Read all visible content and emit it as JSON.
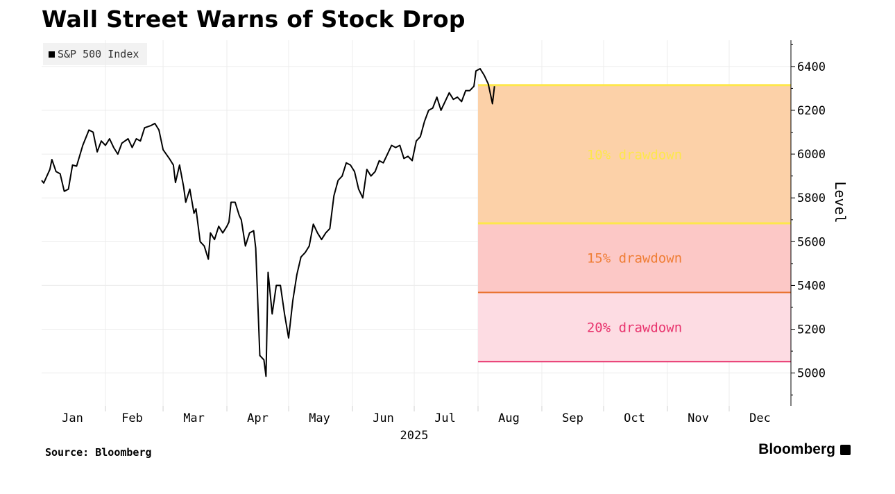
{
  "title": "Wall Street Warns of Stock Drop",
  "legend": {
    "label": "S&P 500 Index",
    "icon": "square-icon"
  },
  "source": "Source: Bloomberg",
  "brand": "Bloomberg",
  "chart_data": {
    "type": "line",
    "title": "Wall Street Warns of Stock Drop",
    "ylabel": "Level",
    "x_axis_year": "2025",
    "ylim": [
      4850,
      6520
    ],
    "yticks": [
      5000,
      5200,
      5400,
      5600,
      5800,
      6000,
      6200,
      6400
    ],
    "x_range": [
      "2025-01-01",
      "2025-12-31"
    ],
    "xticks": [
      {
        "label": "Jan",
        "date": "2025-01-16"
      },
      {
        "label": "Feb",
        "date": "2025-02-14"
      },
      {
        "label": "Mar",
        "date": "2025-03-16"
      },
      {
        "label": "Apr",
        "date": "2025-04-16"
      },
      {
        "label": "May",
        "date": "2025-05-16"
      },
      {
        "label": "Jun",
        "date": "2025-06-16"
      },
      {
        "label": "Jul",
        "date": "2025-07-16"
      },
      {
        "label": "Aug",
        "date": "2025-08-16"
      },
      {
        "label": "Sep",
        "date": "2025-09-16"
      },
      {
        "label": "Oct",
        "date": "2025-10-16"
      },
      {
        "label": "Nov",
        "date": "2025-11-16"
      },
      {
        "label": "Dec",
        "date": "2025-12-16"
      }
    ],
    "grid": true,
    "legend_position": "top-left",
    "colors": {
      "line": "#000000",
      "band_10": "#fcd1a8",
      "band_15": "#fcc8c6",
      "band_20": "#fddce3",
      "line_10": "#fde74c",
      "line_15": "#e8712c",
      "line_20": "#e8336d",
      "label_10": "#fde74c",
      "label_15": "#ef7d34",
      "label_20": "#e8336d"
    },
    "bands": {
      "start": "2025-08-01",
      "end": "2025-12-31",
      "peak": 6315,
      "levels": [
        {
          "name": "10% drawdown",
          "level": 5684,
          "label": "10% drawdown"
        },
        {
          "name": "15% drawdown",
          "level": 5368,
          "label": "15% drawdown"
        },
        {
          "name": "20% drawdown",
          "level": 5052,
          "label": "20% drawdown"
        }
      ]
    },
    "series": [
      {
        "name": "S&P 500 Index",
        "points": [
          [
            "2025-01-01",
            5880
          ],
          [
            "2025-01-02",
            5868
          ],
          [
            "2025-01-05",
            5930
          ],
          [
            "2025-01-06",
            5975
          ],
          [
            "2025-01-08",
            5920
          ],
          [
            "2025-01-10",
            5910
          ],
          [
            "2025-01-12",
            5830
          ],
          [
            "2025-01-14",
            5840
          ],
          [
            "2025-01-16",
            5950
          ],
          [
            "2025-01-18",
            5945
          ],
          [
            "2025-01-21",
            6040
          ],
          [
            "2025-01-24",
            6110
          ],
          [
            "2025-01-26",
            6100
          ],
          [
            "2025-01-28",
            6010
          ],
          [
            "2025-01-30",
            6060
          ],
          [
            "2025-02-01",
            6040
          ],
          [
            "2025-02-03",
            6070
          ],
          [
            "2025-02-05",
            6030
          ],
          [
            "2025-02-07",
            6000
          ],
          [
            "2025-02-09",
            6050
          ],
          [
            "2025-02-12",
            6070
          ],
          [
            "2025-02-14",
            6030
          ],
          [
            "2025-02-16",
            6070
          ],
          [
            "2025-02-18",
            6060
          ],
          [
            "2025-02-20",
            6120
          ],
          [
            "2025-02-23",
            6130
          ],
          [
            "2025-02-25",
            6140
          ],
          [
            "2025-02-27",
            6110
          ],
          [
            "2025-03-01",
            6020
          ],
          [
            "2025-03-04",
            5980
          ],
          [
            "2025-03-06",
            5950
          ],
          [
            "2025-03-07",
            5870
          ],
          [
            "2025-03-09",
            5950
          ],
          [
            "2025-03-11",
            5850
          ],
          [
            "2025-03-12",
            5780
          ],
          [
            "2025-03-14",
            5840
          ],
          [
            "2025-03-16",
            5730
          ],
          [
            "2025-03-17",
            5750
          ],
          [
            "2025-03-19",
            5600
          ],
          [
            "2025-03-21",
            5580
          ],
          [
            "2025-03-23",
            5520
          ],
          [
            "2025-03-24",
            5640
          ],
          [
            "2025-03-26",
            5610
          ],
          [
            "2025-03-28",
            5670
          ],
          [
            "2025-03-30",
            5640
          ],
          [
            "2025-04-01",
            5670
          ],
          [
            "2025-04-02",
            5690
          ],
          [
            "2025-04-03",
            5780
          ],
          [
            "2025-04-05",
            5780
          ],
          [
            "2025-04-07",
            5720
          ],
          [
            "2025-04-08",
            5700
          ],
          [
            "2025-04-10",
            5580
          ],
          [
            "2025-04-12",
            5640
          ],
          [
            "2025-04-14",
            5650
          ],
          [
            "2025-04-15",
            5570
          ],
          [
            "2025-04-17",
            5080
          ],
          [
            "2025-04-19",
            5060
          ],
          [
            "2025-04-20",
            4985
          ],
          [
            "2025-04-21",
            5460
          ],
          [
            "2025-04-23",
            5270
          ],
          [
            "2025-04-25",
            5400
          ],
          [
            "2025-04-27",
            5400
          ],
          [
            "2025-04-29",
            5270
          ],
          [
            "2025-05-01",
            5160
          ],
          [
            "2025-05-03",
            5330
          ],
          [
            "2025-05-05",
            5450
          ],
          [
            "2025-05-07",
            5530
          ],
          [
            "2025-05-09",
            5550
          ],
          [
            "2025-05-11",
            5580
          ],
          [
            "2025-05-13",
            5680
          ],
          [
            "2025-05-15",
            5640
          ],
          [
            "2025-05-17",
            5610
          ],
          [
            "2025-05-19",
            5640
          ],
          [
            "2025-05-21",
            5660
          ],
          [
            "2025-05-23",
            5810
          ],
          [
            "2025-05-25",
            5880
          ],
          [
            "2025-05-27",
            5900
          ],
          [
            "2025-05-29",
            5960
          ],
          [
            "2025-05-31",
            5950
          ],
          [
            "2025-06-02",
            5920
          ],
          [
            "2025-06-04",
            5840
          ],
          [
            "2025-06-06",
            5800
          ],
          [
            "2025-06-08",
            5930
          ],
          [
            "2025-06-10",
            5900
          ],
          [
            "2025-06-12",
            5920
          ],
          [
            "2025-06-14",
            5970
          ],
          [
            "2025-06-16",
            5960
          ],
          [
            "2025-06-18",
            6000
          ],
          [
            "2025-06-20",
            6040
          ],
          [
            "2025-06-22",
            6030
          ],
          [
            "2025-06-24",
            6040
          ],
          [
            "2025-06-26",
            5980
          ],
          [
            "2025-06-28",
            5990
          ],
          [
            "2025-06-30",
            5970
          ],
          [
            "2025-07-02",
            6060
          ],
          [
            "2025-07-04",
            6080
          ],
          [
            "2025-07-06",
            6150
          ],
          [
            "2025-07-08",
            6200
          ],
          [
            "2025-07-10",
            6210
          ],
          [
            "2025-07-12",
            6260
          ],
          [
            "2025-07-14",
            6200
          ],
          [
            "2025-07-16",
            6240
          ],
          [
            "2025-07-18",
            6280
          ],
          [
            "2025-07-20",
            6250
          ],
          [
            "2025-07-22",
            6260
          ],
          [
            "2025-07-24",
            6240
          ],
          [
            "2025-07-26",
            6290
          ],
          [
            "2025-07-28",
            6290
          ],
          [
            "2025-07-30",
            6310
          ],
          [
            "2025-07-31",
            6380
          ],
          [
            "2025-08-02",
            6390
          ],
          [
            "2025-08-04",
            6360
          ],
          [
            "2025-08-06",
            6320
          ],
          [
            "2025-08-08",
            6230
          ],
          [
            "2025-08-09",
            6310
          ]
        ]
      }
    ]
  }
}
